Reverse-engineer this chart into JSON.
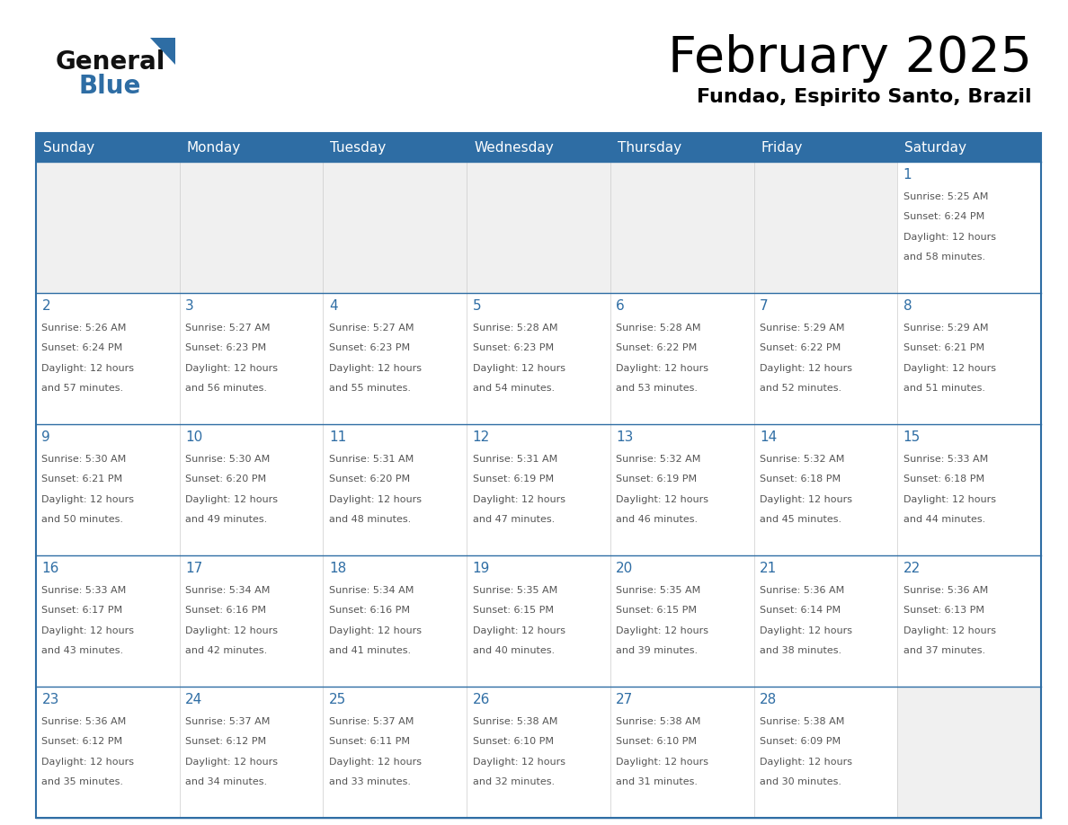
{
  "title": "February 2025",
  "subtitle": "Fundao, Espirito Santo, Brazil",
  "header_bg": "#2e6da4",
  "header_text_color": "#ffffff",
  "cell_bg_empty": "#f0f0f0",
  "cell_bg_filled": "#ffffff",
  "day_number_color": "#2e6da4",
  "text_color": "#555555",
  "border_color": "#2e6da4",
  "grid_line_color": "#2e6da4",
  "days_of_week": [
    "Sunday",
    "Monday",
    "Tuesday",
    "Wednesday",
    "Thursday",
    "Friday",
    "Saturday"
  ],
  "calendar": [
    [
      {
        "day": null,
        "sunrise": null,
        "sunset": null,
        "daylight": null
      },
      {
        "day": null,
        "sunrise": null,
        "sunset": null,
        "daylight": null
      },
      {
        "day": null,
        "sunrise": null,
        "sunset": null,
        "daylight": null
      },
      {
        "day": null,
        "sunrise": null,
        "sunset": null,
        "daylight": null
      },
      {
        "day": null,
        "sunrise": null,
        "sunset": null,
        "daylight": null
      },
      {
        "day": null,
        "sunrise": null,
        "sunset": null,
        "daylight": null
      },
      {
        "day": 1,
        "sunrise": "5:25 AM",
        "sunset": "6:24 PM",
        "daylight": "12 hours and 58 minutes."
      }
    ],
    [
      {
        "day": 2,
        "sunrise": "5:26 AM",
        "sunset": "6:24 PM",
        "daylight": "12 hours and 57 minutes."
      },
      {
        "day": 3,
        "sunrise": "5:27 AM",
        "sunset": "6:23 PM",
        "daylight": "12 hours and 56 minutes."
      },
      {
        "day": 4,
        "sunrise": "5:27 AM",
        "sunset": "6:23 PM",
        "daylight": "12 hours and 55 minutes."
      },
      {
        "day": 5,
        "sunrise": "5:28 AM",
        "sunset": "6:23 PM",
        "daylight": "12 hours and 54 minutes."
      },
      {
        "day": 6,
        "sunrise": "5:28 AM",
        "sunset": "6:22 PM",
        "daylight": "12 hours and 53 minutes."
      },
      {
        "day": 7,
        "sunrise": "5:29 AM",
        "sunset": "6:22 PM",
        "daylight": "12 hours and 52 minutes."
      },
      {
        "day": 8,
        "sunrise": "5:29 AM",
        "sunset": "6:21 PM",
        "daylight": "12 hours and 51 minutes."
      }
    ],
    [
      {
        "day": 9,
        "sunrise": "5:30 AM",
        "sunset": "6:21 PM",
        "daylight": "12 hours and 50 minutes."
      },
      {
        "day": 10,
        "sunrise": "5:30 AM",
        "sunset": "6:20 PM",
        "daylight": "12 hours and 49 minutes."
      },
      {
        "day": 11,
        "sunrise": "5:31 AM",
        "sunset": "6:20 PM",
        "daylight": "12 hours and 48 minutes."
      },
      {
        "day": 12,
        "sunrise": "5:31 AM",
        "sunset": "6:19 PM",
        "daylight": "12 hours and 47 minutes."
      },
      {
        "day": 13,
        "sunrise": "5:32 AM",
        "sunset": "6:19 PM",
        "daylight": "12 hours and 46 minutes."
      },
      {
        "day": 14,
        "sunrise": "5:32 AM",
        "sunset": "6:18 PM",
        "daylight": "12 hours and 45 minutes."
      },
      {
        "day": 15,
        "sunrise": "5:33 AM",
        "sunset": "6:18 PM",
        "daylight": "12 hours and 44 minutes."
      }
    ],
    [
      {
        "day": 16,
        "sunrise": "5:33 AM",
        "sunset": "6:17 PM",
        "daylight": "12 hours and 43 minutes."
      },
      {
        "day": 17,
        "sunrise": "5:34 AM",
        "sunset": "6:16 PM",
        "daylight": "12 hours and 42 minutes."
      },
      {
        "day": 18,
        "sunrise": "5:34 AM",
        "sunset": "6:16 PM",
        "daylight": "12 hours and 41 minutes."
      },
      {
        "day": 19,
        "sunrise": "5:35 AM",
        "sunset": "6:15 PM",
        "daylight": "12 hours and 40 minutes."
      },
      {
        "day": 20,
        "sunrise": "5:35 AM",
        "sunset": "6:15 PM",
        "daylight": "12 hours and 39 minutes."
      },
      {
        "day": 21,
        "sunrise": "5:36 AM",
        "sunset": "6:14 PM",
        "daylight": "12 hours and 38 minutes."
      },
      {
        "day": 22,
        "sunrise": "5:36 AM",
        "sunset": "6:13 PM",
        "daylight": "12 hours and 37 minutes."
      }
    ],
    [
      {
        "day": 23,
        "sunrise": "5:36 AM",
        "sunset": "6:12 PM",
        "daylight": "12 hours and 35 minutes."
      },
      {
        "day": 24,
        "sunrise": "5:37 AM",
        "sunset": "6:12 PM",
        "daylight": "12 hours and 34 minutes."
      },
      {
        "day": 25,
        "sunrise": "5:37 AM",
        "sunset": "6:11 PM",
        "daylight": "12 hours and 33 minutes."
      },
      {
        "day": 26,
        "sunrise": "5:38 AM",
        "sunset": "6:10 PM",
        "daylight": "12 hours and 32 minutes."
      },
      {
        "day": 27,
        "sunrise": "5:38 AM",
        "sunset": "6:10 PM",
        "daylight": "12 hours and 31 minutes."
      },
      {
        "day": 28,
        "sunrise": "5:38 AM",
        "sunset": "6:09 PM",
        "daylight": "12 hours and 30 minutes."
      },
      {
        "day": null,
        "sunrise": null,
        "sunset": null,
        "daylight": null
      }
    ]
  ],
  "logo_general_color": "#111111",
  "logo_blue_color": "#2e6da4",
  "logo_triangle_color": "#2e6da4",
  "title_fontsize": 40,
  "subtitle_fontsize": 16,
  "dow_fontsize": 11,
  "day_num_fontsize": 11,
  "info_fontsize": 8
}
